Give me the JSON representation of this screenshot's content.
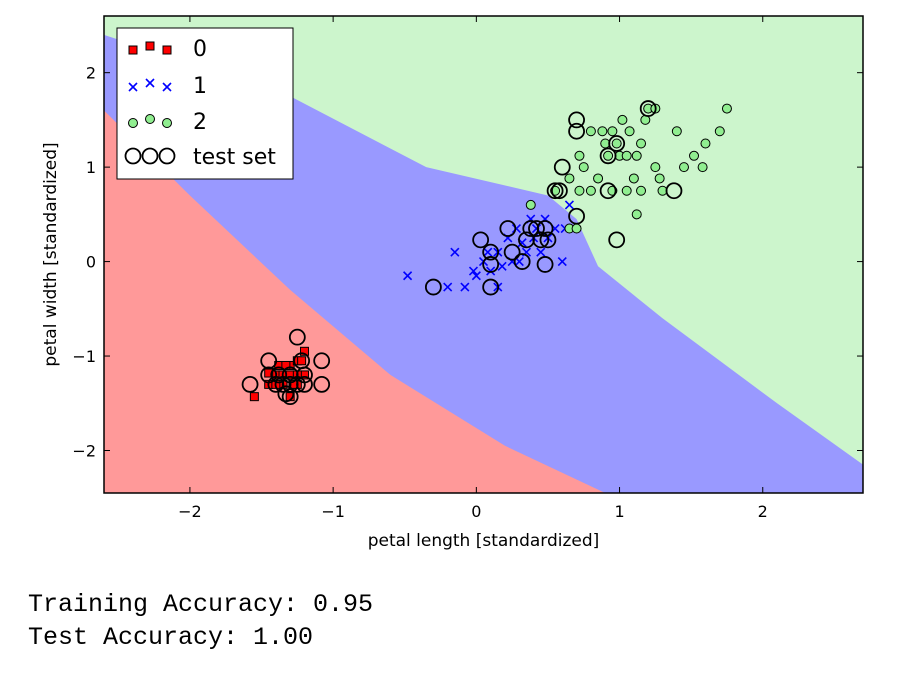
{
  "chart_data": {
    "type": "scatter",
    "title": "",
    "xlabel": "petal length [standardized]",
    "ylabel": "petal width [standardized]",
    "xlim": [
      -2.6,
      2.7
    ],
    "ylim": [
      -2.45,
      2.6
    ],
    "xticks": [
      -2,
      -1,
      0,
      1,
      2
    ],
    "yticks": [
      -2,
      -1,
      0,
      1,
      2
    ],
    "tick_labels_x": [
      "−2",
      "−1",
      "0",
      "1",
      "2"
    ],
    "tick_labels_y": [
      "−2",
      "−1",
      "0",
      "1",
      "2"
    ],
    "grid": false,
    "legend_position": "top-left",
    "legend": [
      {
        "label": "0",
        "marker": "square",
        "color": "#ff0000"
      },
      {
        "label": "1",
        "marker": "x",
        "color": "#0000ff"
      },
      {
        "label": "2",
        "marker": "circle",
        "color": "#90ee90"
      },
      {
        "label": "test set",
        "marker": "open-circle",
        "color": "#000000"
      }
    ],
    "decision_regions": [
      {
        "class": "0",
        "color": "#ff9999",
        "boundary_points": [
          [
            -2.6,
            1.6
          ],
          [
            -2.0,
            0.7
          ],
          [
            -1.3,
            -0.3
          ],
          [
            -0.6,
            -1.2
          ],
          [
            0.2,
            -1.95
          ],
          [
            0.9,
            -2.45
          ]
        ]
      },
      {
        "class": "1",
        "color": "#9999ff",
        "boundary_points": [
          [
            -2.6,
            2.4
          ],
          [
            -1.3,
            1.75
          ],
          [
            -0.35,
            1.0
          ],
          [
            0.5,
            0.7
          ],
          [
            0.7,
            0.45
          ],
          [
            0.85,
            -0.05
          ],
          [
            1.3,
            -0.6
          ],
          [
            2.1,
            -1.5
          ],
          [
            2.7,
            -2.15
          ]
        ]
      },
      {
        "class": "2",
        "color": "#ccf5cc"
      }
    ],
    "series": [
      {
        "name": "0",
        "marker": "square",
        "color": "#ff0000",
        "points": [
          [
            -1.55,
            -1.43
          ],
          [
            -1.45,
            -1.3
          ],
          [
            -1.4,
            -1.2
          ],
          [
            -1.35,
            -1.3
          ],
          [
            -1.3,
            -1.1
          ],
          [
            -1.3,
            -1.43
          ],
          [
            -1.25,
            -1.3
          ],
          [
            -1.2,
            -1.2
          ],
          [
            -1.2,
            -0.95
          ],
          [
            -1.25,
            -1.05
          ],
          [
            -1.35,
            -1.2
          ],
          [
            -1.28,
            -1.3
          ],
          [
            -1.38,
            -1.1
          ],
          [
            -1.45,
            -1.18
          ],
          [
            -1.3,
            -1.2
          ],
          [
            -1.22,
            -1.05
          ],
          [
            -1.4,
            -1.3
          ],
          [
            -1.33,
            -1.1
          ],
          [
            -1.25,
            -1.2
          ]
        ]
      },
      {
        "name": "1",
        "marker": "x",
        "color": "#0000ff",
        "points": [
          [
            -0.48,
            -0.15
          ],
          [
            -0.15,
            0.1
          ],
          [
            -0.2,
            -0.27
          ],
          [
            -0.08,
            -0.27
          ],
          [
            0.0,
            -0.15
          ],
          [
            0.05,
            0.0
          ],
          [
            0.1,
            -0.1
          ],
          [
            0.15,
            -0.27
          ],
          [
            0.15,
            0.1
          ],
          [
            0.22,
            0.25
          ],
          [
            0.25,
            0.0
          ],
          [
            0.28,
            0.35
          ],
          [
            0.32,
            0.2
          ],
          [
            0.35,
            0.1
          ],
          [
            0.38,
            0.45
          ],
          [
            0.4,
            0.25
          ],
          [
            0.42,
            0.35
          ],
          [
            0.45,
            0.1
          ],
          [
            0.48,
            0.45
          ],
          [
            0.5,
            0.25
          ],
          [
            0.55,
            0.35
          ],
          [
            0.6,
            0.0
          ],
          [
            0.62,
            0.35
          ],
          [
            0.65,
            0.6
          ],
          [
            0.3,
            0.0
          ],
          [
            0.18,
            -0.05
          ],
          [
            -0.02,
            -0.1
          ],
          [
            0.08,
            0.1
          ]
        ]
      },
      {
        "name": "2",
        "marker": "circle",
        "color": "#90ee90",
        "points": [
          [
            0.38,
            0.6
          ],
          [
            0.55,
            0.75
          ],
          [
            0.65,
            0.35
          ],
          [
            0.7,
            0.35
          ],
          [
            0.72,
            0.75
          ],
          [
            0.75,
            1.0
          ],
          [
            0.8,
            1.38
          ],
          [
            0.85,
            0.88
          ],
          [
            0.88,
            1.38
          ],
          [
            0.92,
            1.12
          ],
          [
            0.95,
            1.38
          ],
          [
            0.95,
            0.75
          ],
          [
            0.98,
            1.25
          ],
          [
            1.0,
            1.12
          ],
          [
            1.02,
            1.5
          ],
          [
            1.05,
            1.12
          ],
          [
            1.05,
            0.75
          ],
          [
            1.07,
            1.38
          ],
          [
            1.1,
            0.88
          ],
          [
            1.12,
            0.5
          ],
          [
            1.12,
            1.12
          ],
          [
            1.15,
            1.25
          ],
          [
            1.15,
            0.75
          ],
          [
            1.2,
            1.62
          ],
          [
            1.25,
            1.62
          ],
          [
            1.25,
            1.0
          ],
          [
            1.28,
            0.88
          ],
          [
            1.3,
            0.75
          ],
          [
            1.4,
            1.38
          ],
          [
            1.45,
            1.0
          ],
          [
            1.52,
            1.12
          ],
          [
            1.6,
            1.25
          ],
          [
            1.7,
            1.38
          ],
          [
            1.75,
            1.62
          ],
          [
            1.58,
            1.0
          ],
          [
            0.65,
            0.88
          ],
          [
            0.72,
            1.12
          ],
          [
            0.8,
            0.75
          ],
          [
            0.9,
            1.25
          ],
          [
            1.18,
            1.5
          ]
        ]
      },
      {
        "name": "test set",
        "marker": "open-circle",
        "color": "#000000",
        "points": [
          [
            -1.58,
            -1.3
          ],
          [
            -1.45,
            -1.05
          ],
          [
            -1.45,
            -1.2
          ],
          [
            -1.4,
            -1.3
          ],
          [
            -1.38,
            -1.2
          ],
          [
            -1.35,
            -1.3
          ],
          [
            -1.33,
            -1.4
          ],
          [
            -1.3,
            -1.43
          ],
          [
            -1.3,
            -1.2
          ],
          [
            -1.25,
            -1.3
          ],
          [
            -1.25,
            -0.8
          ],
          [
            -1.22,
            -1.05
          ],
          [
            -1.2,
            -1.2
          ],
          [
            -1.2,
            -1.3
          ],
          [
            -1.08,
            -1.05
          ],
          [
            -1.08,
            -1.3
          ],
          [
            -1.3,
            -1.3
          ],
          [
            -0.3,
            -0.27
          ],
          [
            0.03,
            0.23
          ],
          [
            0.1,
            0.1
          ],
          [
            0.1,
            -0.03
          ],
          [
            0.1,
            -0.27
          ],
          [
            0.22,
            0.35
          ],
          [
            0.25,
            0.1
          ],
          [
            0.32,
            0.0
          ],
          [
            0.35,
            0.23
          ],
          [
            0.38,
            0.35
          ],
          [
            0.42,
            0.35
          ],
          [
            0.45,
            0.23
          ],
          [
            0.48,
            0.35
          ],
          [
            0.5,
            0.23
          ],
          [
            0.48,
            -0.03
          ],
          [
            0.7,
            0.48
          ],
          [
            0.55,
            0.75
          ],
          [
            0.58,
            0.75
          ],
          [
            0.6,
            1.0
          ],
          [
            0.7,
            1.38
          ],
          [
            0.7,
            1.5
          ],
          [
            0.92,
            0.75
          ],
          [
            0.92,
            1.12
          ],
          [
            0.98,
            1.25
          ],
          [
            0.98,
            0.23
          ],
          [
            1.2,
            1.62
          ],
          [
            1.38,
            0.75
          ]
        ]
      }
    ]
  },
  "results": {
    "training": "Training Accuracy: 0.95",
    "test": "Test Accuracy: 1.00"
  }
}
